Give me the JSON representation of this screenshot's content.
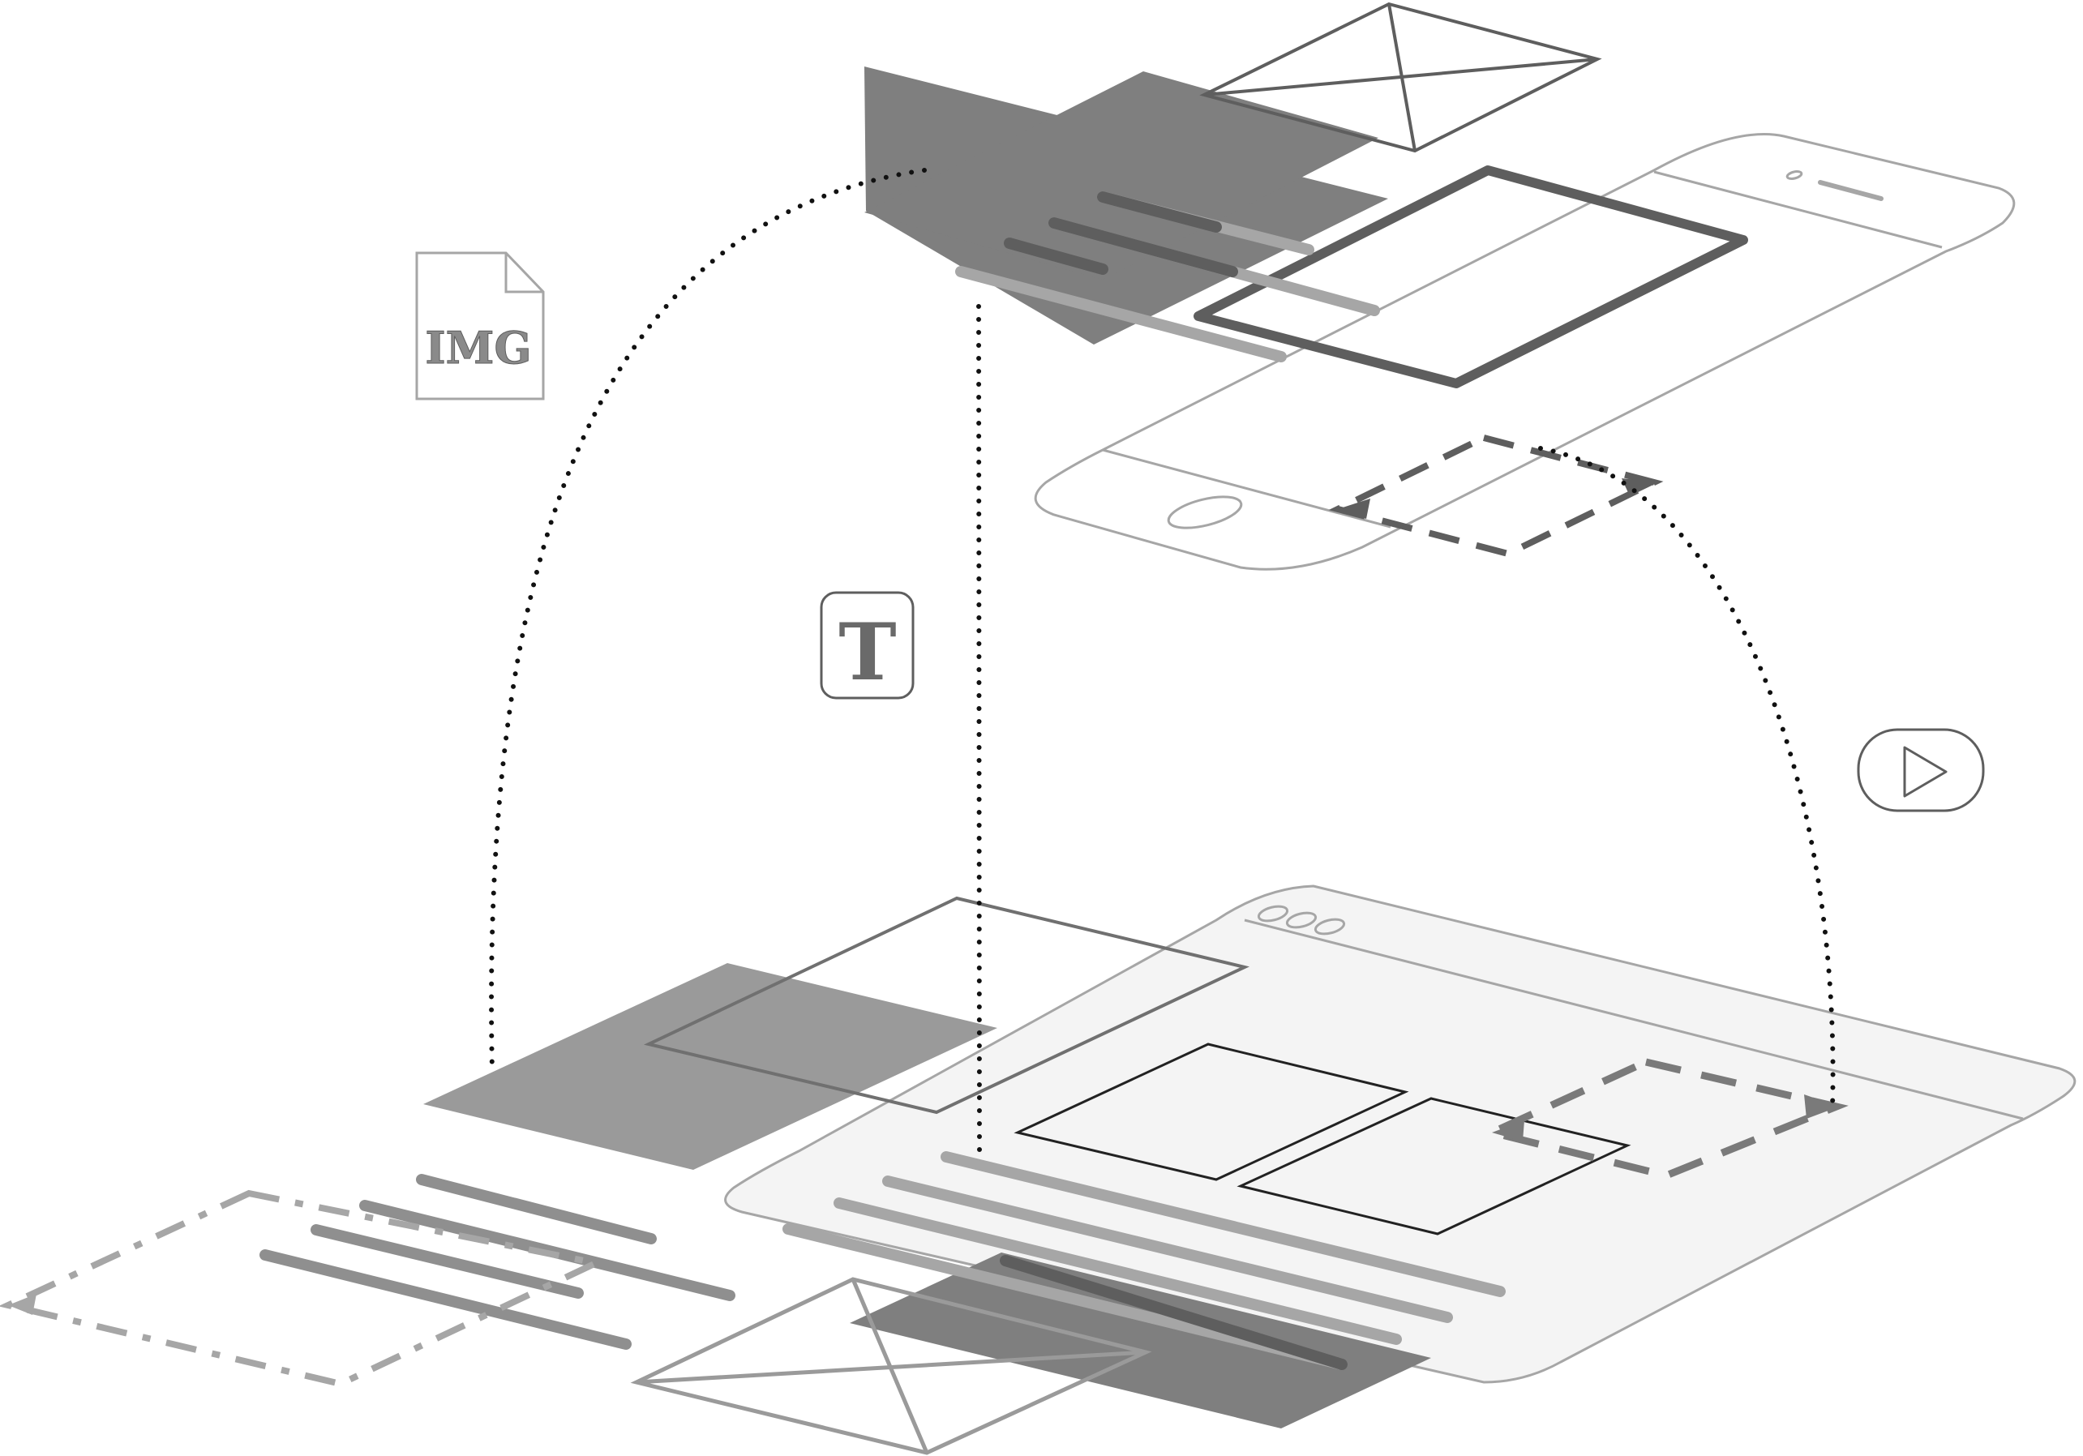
{
  "diagram": {
    "kind": "isometric-wireframe-illustration",
    "icons": {
      "image_file": {
        "label": "IMG",
        "icon": "image-file-icon"
      },
      "text": {
        "label": "T",
        "icon": "text-icon"
      },
      "video": {
        "icon": "play-button-icon"
      }
    },
    "devices": [
      "mobile-phone",
      "desktop-browser-window"
    ],
    "colors": {
      "ink": "#555555",
      "mid_gray": "#7f7f7f",
      "light_gray": "#9a9a9a",
      "line_gray": "#a6a6a6",
      "panel_fill": "#f4f4f4",
      "dots": "#111111",
      "background": "#ffffff"
    }
  }
}
